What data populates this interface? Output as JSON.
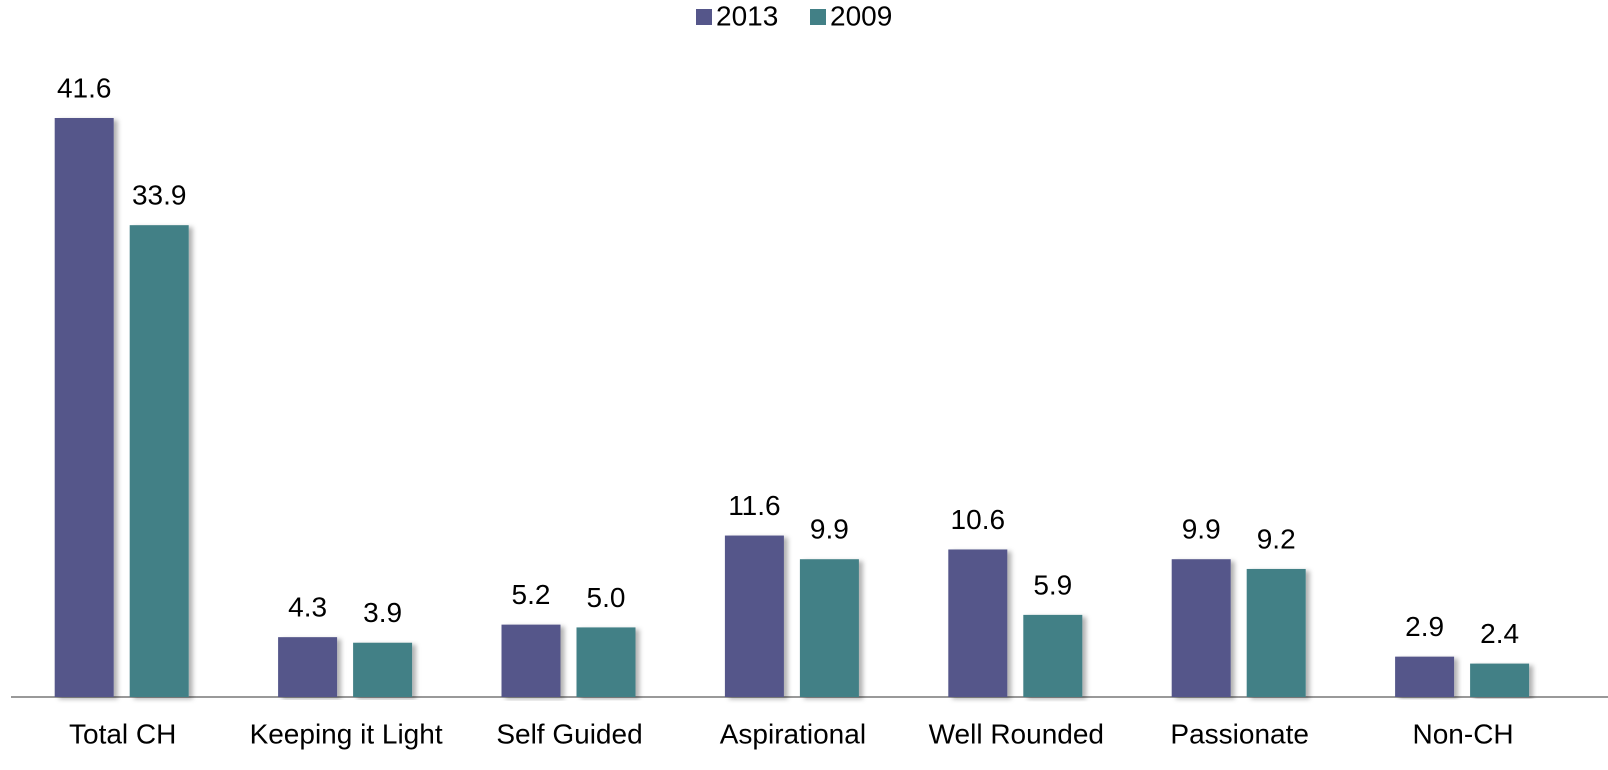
{
  "chart_data": {
    "type": "bar",
    "categories": [
      "Total CH",
      "Keeping it Light",
      "Self Guided",
      "Aspirational",
      "Well Rounded",
      "Passionate",
      "Non-CH"
    ],
    "series": [
      {
        "name": "2013",
        "color": "#55568a",
        "values": [
          41.6,
          4.3,
          5.2,
          11.6,
          10.6,
          9.9,
          2.9
        ],
        "value_labels": [
          "41.6",
          "4.3",
          "5.2",
          "11.6",
          "10.6",
          "9.9",
          "2.9"
        ]
      },
      {
        "name": "2009",
        "color": "#428086",
        "values": [
          33.9,
          3.9,
          5.0,
          9.9,
          5.9,
          9.2,
          2.4
        ],
        "value_labels": [
          "33.9",
          "3.9",
          "5.0",
          "9.9",
          "5.9",
          "9.2",
          "2.4"
        ]
      }
    ],
    "legend": "top"
  }
}
